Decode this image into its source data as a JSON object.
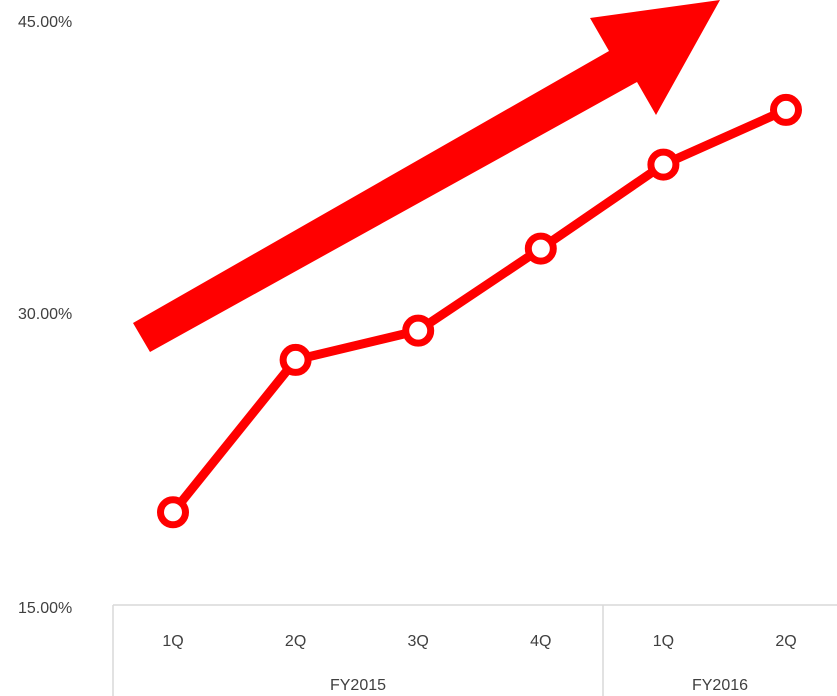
{
  "chart_data": {
    "type": "line",
    "categories": [
      "1Q",
      "2Q",
      "3Q",
      "4Q",
      "1Q",
      "2Q"
    ],
    "category_groups": [
      {
        "label": "FY2015",
        "span": 4
      },
      {
        "label": "FY2016",
        "span": 2
      }
    ],
    "series": [
      {
        "values": [
          19.9,
          27.7,
          29.2,
          33.4,
          37.7,
          40.5
        ]
      }
    ],
    "y_ticks": [
      "45.00%",
      "30.00%",
      "15.00%"
    ],
    "ylim": [
      15,
      45
    ],
    "grid": false,
    "colors": {
      "line": "#ff0000",
      "arrow": "#ff0000",
      "axis": "#d9d9d9",
      "text": "#404040"
    },
    "annotation": {
      "type": "arrow",
      "direction": "up-right",
      "icon": "trend-up-arrow-icon"
    }
  }
}
